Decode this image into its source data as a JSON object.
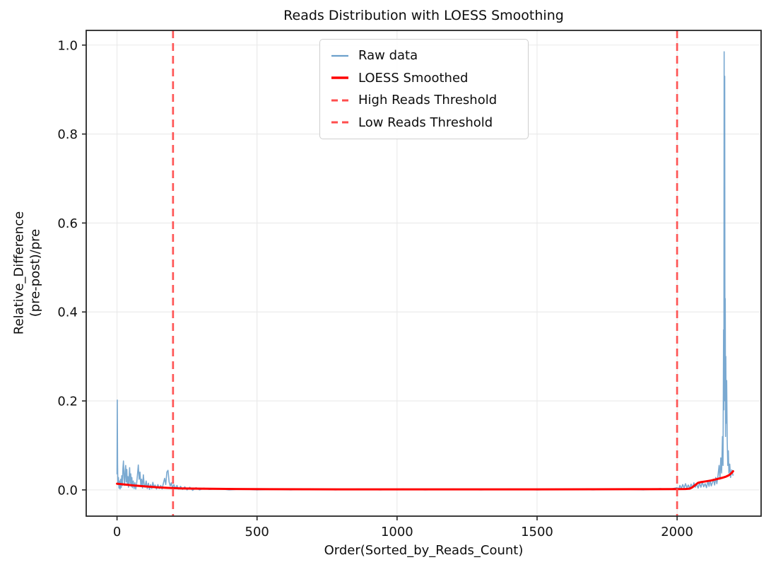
{
  "chart_data": {
    "type": "line",
    "title": "Reads Distribution with LOESS Smoothing",
    "xlabel": "Order(Sorted_by_Reads_Count)",
    "ylabel": "Relative_Difference\n(pre-post)/pre",
    "xlim": [
      -110,
      2300
    ],
    "ylim": [
      -0.059,
      1.033
    ],
    "xticks": [
      0,
      500,
      1000,
      1500,
      2000
    ],
    "yticks": [
      0.0,
      0.2,
      0.4,
      0.6,
      0.8,
      1.0
    ],
    "grid": true,
    "colors": {
      "raw": "#6CA0CC",
      "loess": "#FF0000",
      "threshold": "#FF4D4D",
      "grid": "#E9E9E9",
      "spine": "#262626",
      "text": "#111111"
    },
    "legend": {
      "position": "upper center-left",
      "items": [
        {
          "label": "Raw data",
          "color": "#6CA0CC",
          "style": "solid",
          "width": 2.2
        },
        {
          "label": "LOESS Smoothed",
          "color": "#FF0000",
          "style": "solid",
          "width": 3.4
        },
        {
          "label": "High Reads Threshold",
          "color": "#FF4D4D",
          "style": "dashed",
          "width": 3
        },
        {
          "label": "Low Reads Threshold",
          "color": "#FF4D4D",
          "style": "dashed",
          "width": 3
        }
      ]
    },
    "thresholds": {
      "high_reads_x": 200,
      "low_reads_x": 2000
    },
    "series": [
      {
        "name": "Raw data",
        "points": [
          [
            0,
            0.035
          ],
          [
            1,
            0.202
          ],
          [
            2,
            0.06
          ],
          [
            3,
            0.012
          ],
          [
            5,
            0.028
          ],
          [
            7,
            0.004
          ],
          [
            9,
            0.02
          ],
          [
            11,
            0.002
          ],
          [
            13,
            0.024
          ],
          [
            15,
            0.005
          ],
          [
            17,
            0.032
          ],
          [
            19,
            0.01
          ],
          [
            21,
            0.048
          ],
          [
            23,
            0.065
          ],
          [
            25,
            0.028
          ],
          [
            27,
            0.01
          ],
          [
            29,
            0.042
          ],
          [
            31,
            0.055
          ],
          [
            33,
            0.018
          ],
          [
            35,
            0.046
          ],
          [
            37,
            0.012
          ],
          [
            39,
            0.03
          ],
          [
            41,
            0.006
          ],
          [
            43,
            0.026
          ],
          [
            45,
            0.05
          ],
          [
            47,
            0.015
          ],
          [
            49,
            0.036
          ],
          [
            51,
            0.008
          ],
          [
            53,
            0.028
          ],
          [
            55,
            0.005
          ],
          [
            58,
            0.02
          ],
          [
            61,
            0.003
          ],
          [
            64,
            0.016
          ],
          [
            67,
            0.002
          ],
          [
            70,
            0.014
          ],
          [
            73,
            0.034
          ],
          [
            76,
            0.056
          ],
          [
            79,
            0.024
          ],
          [
            82,
            0.04
          ],
          [
            85,
            0.01
          ],
          [
            88,
            0.024
          ],
          [
            91,
            0.004
          ],
          [
            94,
            0.034
          ],
          [
            97,
            0.012
          ],
          [
            100,
            0.006
          ],
          [
            104,
            0.02
          ],
          [
            108,
            0.003
          ],
          [
            112,
            0.015
          ],
          [
            116,
            0.001
          ],
          [
            120,
            0.012
          ],
          [
            124,
            0.003
          ],
          [
            128,
            0.017
          ],
          [
            132,
            0.005
          ],
          [
            136,
            0.011
          ],
          [
            141,
            0.002
          ],
          [
            146,
            0.012
          ],
          [
            151,
            0.003
          ],
          [
            156,
            0.01
          ],
          [
            161,
            0.002
          ],
          [
            166,
            0.016
          ],
          [
            170,
            0.026
          ],
          [
            174,
            0.012
          ],
          [
            178,
            0.04
          ],
          [
            182,
            0.044
          ],
          [
            186,
            0.018
          ],
          [
            190,
            0.009
          ],
          [
            194,
            0.016
          ],
          [
            198,
            0.004
          ],
          [
            203,
            0.012
          ],
          [
            208,
            0.003
          ],
          [
            214,
            0.01
          ],
          [
            220,
            0.002
          ],
          [
            227,
            0.008
          ],
          [
            234,
            0.001
          ],
          [
            242,
            0.007
          ],
          [
            250,
            0.0
          ],
          [
            260,
            0.006
          ],
          [
            270,
            -0.001
          ],
          [
            282,
            0.005
          ],
          [
            295,
            0.0
          ],
          [
            310,
            0.004
          ],
          [
            330,
            0.001
          ],
          [
            360,
            0.003
          ],
          [
            400,
            0.0
          ],
          [
            450,
            0.002
          ],
          [
            500,
            0.0
          ],
          [
            560,
            0.002
          ],
          [
            620,
            0.0
          ],
          [
            700,
            0.002
          ],
          [
            780,
            0.0
          ],
          [
            860,
            0.002
          ],
          [
            940,
            0.0
          ],
          [
            1020,
            0.002
          ],
          [
            1100,
            0.0
          ],
          [
            1200,
            0.002
          ],
          [
            1300,
            0.0
          ],
          [
            1400,
            0.002
          ],
          [
            1500,
            0.0
          ],
          [
            1600,
            0.002
          ],
          [
            1700,
            0.0
          ],
          [
            1800,
            0.002
          ],
          [
            1880,
            0.0
          ],
          [
            1940,
            0.003
          ],
          [
            1970,
            0.001
          ],
          [
            2000,
            0.005
          ],
          [
            2005,
            0.001
          ],
          [
            2010,
            0.01
          ],
          [
            2015,
            0.003
          ],
          [
            2020,
            0.012
          ],
          [
            2025,
            0.004
          ],
          [
            2030,
            0.014
          ],
          [
            2035,
            0.005
          ],
          [
            2040,
            0.011
          ],
          [
            2045,
            0.003
          ],
          [
            2050,
            0.013
          ],
          [
            2055,
            0.005
          ],
          [
            2060,
            0.016
          ],
          [
            2065,
            0.006
          ],
          [
            2070,
            0.013
          ],
          [
            2075,
            0.004
          ],
          [
            2080,
            0.016
          ],
          [
            2085,
            0.006
          ],
          [
            2090,
            0.018
          ],
          [
            2095,
            0.007
          ],
          [
            2100,
            0.014
          ],
          [
            2105,
            0.005
          ],
          [
            2110,
            0.02
          ],
          [
            2114,
            0.008
          ],
          [
            2118,
            0.022
          ],
          [
            2122,
            0.009
          ],
          [
            2126,
            0.016
          ],
          [
            2130,
            0.024
          ],
          [
            2134,
            0.011
          ],
          [
            2138,
            0.028
          ],
          [
            2142,
            0.014
          ],
          [
            2146,
            0.032
          ],
          [
            2150,
            0.055
          ],
          [
            2153,
            0.024
          ],
          [
            2156,
            0.072
          ],
          [
            2159,
            0.038
          ],
          [
            2162,
            0.12
          ],
          [
            2164,
            0.055
          ],
          [
            2166,
            0.36
          ],
          [
            2167,
            0.18
          ],
          [
            2168,
            0.985
          ],
          [
            2169,
            0.32
          ],
          [
            2170,
            0.93
          ],
          [
            2171,
            0.2
          ],
          [
            2172,
            0.43
          ],
          [
            2173,
            0.12
          ],
          [
            2174,
            0.3
          ],
          [
            2175,
            0.15
          ],
          [
            2177,
            0.246
          ],
          [
            2179,
            0.11
          ],
          [
            2181,
            0.055
          ],
          [
            2183,
            0.088
          ],
          [
            2185,
            0.038
          ],
          [
            2188,
            0.058
          ],
          [
            2191,
            0.028
          ],
          [
            2195,
            0.045
          ],
          [
            2200,
            0.032
          ]
        ]
      },
      {
        "name": "LOESS Smoothed",
        "points": [
          [
            0,
            0.014
          ],
          [
            30,
            0.012
          ],
          [
            60,
            0.01
          ],
          [
            100,
            0.008
          ],
          [
            140,
            0.006
          ],
          [
            180,
            0.0045
          ],
          [
            220,
            0.0035
          ],
          [
            270,
            0.003
          ],
          [
            330,
            0.0025
          ],
          [
            420,
            0.002
          ],
          [
            550,
            0.0016
          ],
          [
            800,
            0.0013
          ],
          [
            1100,
            0.0012
          ],
          [
            1400,
            0.0012
          ],
          [
            1700,
            0.0014
          ],
          [
            1900,
            0.0016
          ],
          [
            2000,
            0.0018
          ],
          [
            2030,
            0.002
          ],
          [
            2045,
            0.0028
          ],
          [
            2055,
            0.006
          ],
          [
            2065,
            0.011
          ],
          [
            2075,
            0.016
          ],
          [
            2085,
            0.0175
          ],
          [
            2100,
            0.019
          ],
          [
            2120,
            0.021
          ],
          [
            2140,
            0.024
          ],
          [
            2160,
            0.027
          ],
          [
            2175,
            0.03
          ],
          [
            2185,
            0.033
          ],
          [
            2193,
            0.037
          ],
          [
            2200,
            0.042
          ]
        ]
      }
    ]
  }
}
